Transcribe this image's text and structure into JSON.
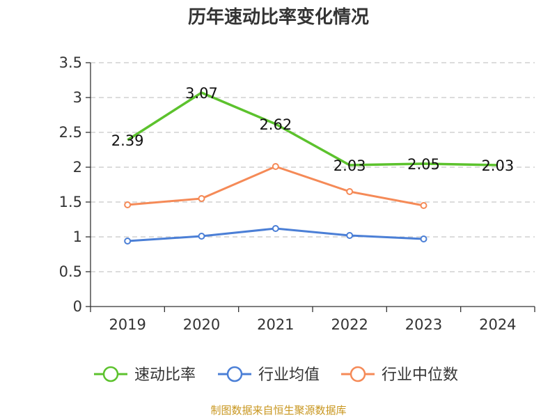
{
  "chart_data": {
    "type": "line",
    "title": "历年速动比率变化情况",
    "categories": [
      "2019",
      "2020",
      "2021",
      "2022",
      "2023",
      "2024"
    ],
    "ylim": [
      0,
      3.5
    ],
    "yticks": [
      "0",
      "0.5",
      "1",
      "1.5",
      "2",
      "2.5",
      "3",
      "3.5"
    ],
    "grid": true,
    "legend_position": "bottom",
    "series": [
      {
        "name": "速动比率",
        "color": "#5cc22d",
        "values": [
          2.39,
          3.07,
          2.62,
          2.03,
          2.05,
          2.03
        ],
        "labels": [
          "2.39",
          "3.07",
          "2.62",
          "2.03",
          "2.05",
          "2.03"
        ]
      },
      {
        "name": "行业均值",
        "color": "#4b7fd6",
        "values": [
          0.94,
          1.01,
          1.12,
          1.02,
          0.97,
          null
        ]
      },
      {
        "name": "行业中位数",
        "color": "#f58a57",
        "values": [
          1.46,
          1.55,
          2.01,
          1.65,
          1.45,
          null
        ]
      }
    ],
    "source": "制图数据来自恒生聚源数据库"
  }
}
